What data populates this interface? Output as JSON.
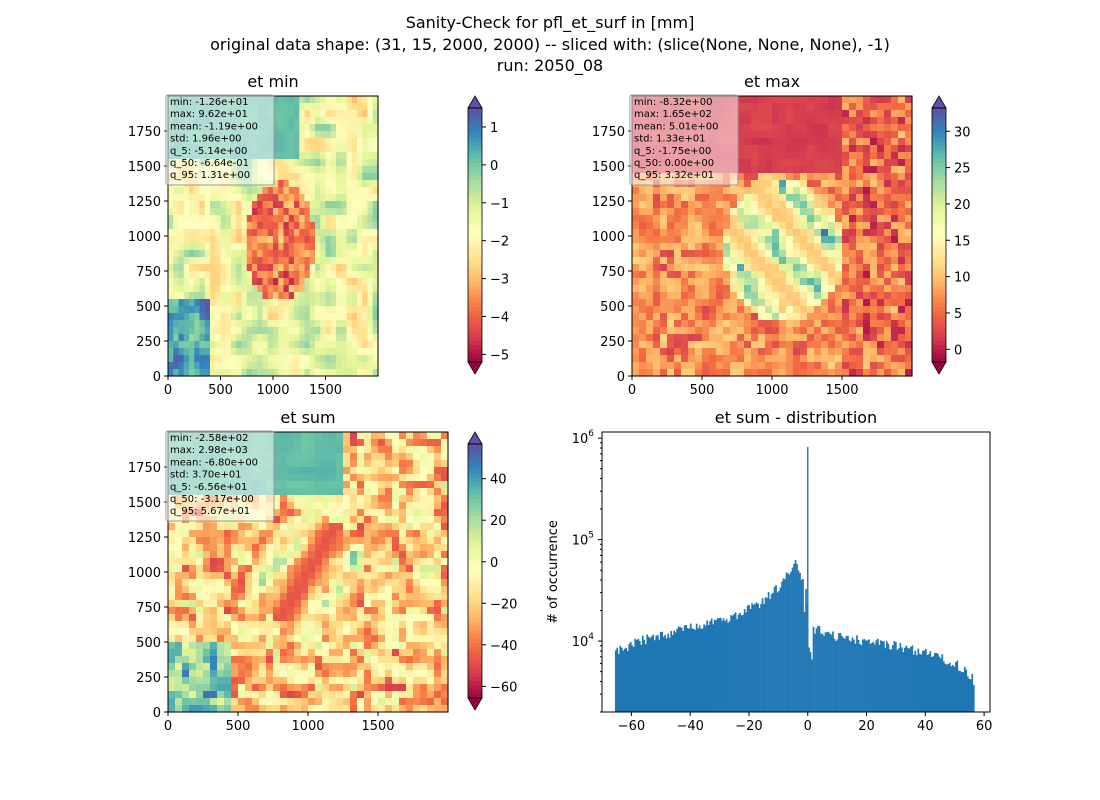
{
  "figure": {
    "title_lines": [
      "Sanity-Check for pfl_et_surf in [mm]",
      "original data shape: (31, 15, 2000, 2000) -- sliced with: (slice(None, None, None), -1)",
      "run: 2050_08"
    ]
  },
  "chart_data": [
    {
      "type": "heatmap",
      "title": "et min",
      "xlim": [
        0,
        2000
      ],
      "ylim": [
        0,
        2000
      ],
      "xticks": [
        0,
        500,
        1000,
        1500
      ],
      "yticks": [
        0,
        250,
        500,
        750,
        1000,
        1250,
        1500,
        1750
      ],
      "colormap": "Spectral",
      "colorbar": {
        "vmin": -5.2,
        "vmax": 1.5,
        "ticks": [
          1,
          0,
          -1,
          -2,
          -3,
          -4,
          -5
        ],
        "extend": "both"
      },
      "stats": [
        "min: -1.26e+01",
        "max: 9.62e+01",
        "mean: -1.19e+00",
        "std: 1.96e+00",
        "q_5: -5.14e+00",
        "q_50: -6.64e-01",
        "q_95: 1.31e+00"
      ]
    },
    {
      "type": "heatmap",
      "title": "et max",
      "xlim": [
        0,
        2000
      ],
      "ylim": [
        0,
        2000
      ],
      "xticks": [
        0,
        500,
        1000,
        1500
      ],
      "yticks": [
        0,
        250,
        500,
        750,
        1000,
        1250,
        1500,
        1750
      ],
      "colormap": "Spectral",
      "colorbar": {
        "vmin": -1.75,
        "vmax": 33.2,
        "ticks": [
          30,
          25,
          20,
          15,
          10,
          5,
          0
        ],
        "extend": "both"
      },
      "stats": [
        "min: -8.32e+00",
        "max: 1.65e+02",
        "mean: 5.01e+00",
        "std: 1.33e+01",
        "q_5: -1.75e+00",
        "q_50: 0.00e+00",
        "q_95: 3.32e+01"
      ]
    },
    {
      "type": "heatmap",
      "title": "et sum",
      "xlim": [
        0,
        2000
      ],
      "ylim": [
        0,
        2000
      ],
      "xticks": [
        0,
        500,
        1000,
        1500
      ],
      "yticks": [
        0,
        250,
        500,
        750,
        1000,
        1250,
        1500,
        1750
      ],
      "colormap": "Spectral",
      "colorbar": {
        "vmin": -65.6,
        "vmax": 56.7,
        "ticks": [
          40,
          20,
          0,
          -20,
          -40,
          -60
        ],
        "extend": "both"
      },
      "stats": [
        "min: -2.58e+02",
        "max: 2.98e+03",
        "mean: -6.80e+00",
        "std: 3.70e+01",
        "q_5: -6.56e+01",
        "q_50: -3.17e+00",
        "q_95: 5.67e+01"
      ]
    },
    {
      "type": "bar",
      "title": "et sum - distribution",
      "ylabel": "# of occurrence",
      "xlabel": "",
      "yscale": "log",
      "xlim": [
        -70,
        62
      ],
      "ylim": [
        2000,
        1150000
      ],
      "xticks": [
        -60,
        -40,
        -20,
        0,
        20,
        40,
        60
      ],
      "yticks": [
        {
          "value": 10000,
          "base": "10",
          "exp": "4"
        },
        {
          "value": 100000,
          "base": "10",
          "exp": "5"
        },
        {
          "value": 1000000,
          "base": "10",
          "exp": "6"
        }
      ],
      "bin_range": [
        -65.6,
        56.7
      ],
      "bar_color": "#1f77b4",
      "spike": {
        "x": 0,
        "value": 820000
      },
      "anchors": [
        [
          -65.6,
          8000
        ],
        [
          -60,
          9200
        ],
        [
          -55,
          10500
        ],
        [
          -50,
          11500
        ],
        [
          -45,
          12500
        ],
        [
          -40,
          13500
        ],
        [
          -35,
          15000
        ],
        [
          -30,
          16000
        ],
        [
          -25,
          17500
        ],
        [
          -22,
          19000
        ],
        [
          -19,
          21500
        ],
        [
          -16,
          24000
        ],
        [
          -14,
          27000
        ],
        [
          -12,
          30000
        ],
        [
          -10,
          34000
        ],
        [
          -8,
          40000
        ],
        [
          -6,
          52000
        ],
        [
          -4.5,
          60000
        ],
        [
          -3,
          50000
        ],
        [
          -1.5,
          38000
        ],
        [
          -0.5,
          32000
        ],
        [
          0.5,
          14000
        ],
        [
          2,
          13000
        ],
        [
          5,
          12500
        ],
        [
          10,
          11000
        ],
        [
          20,
          10000
        ],
        [
          30,
          9000
        ],
        [
          40,
          7800
        ],
        [
          45,
          7000
        ],
        [
          50,
          6000
        ],
        [
          54,
          5200
        ],
        [
          56.7,
          4000
        ]
      ]
    }
  ]
}
